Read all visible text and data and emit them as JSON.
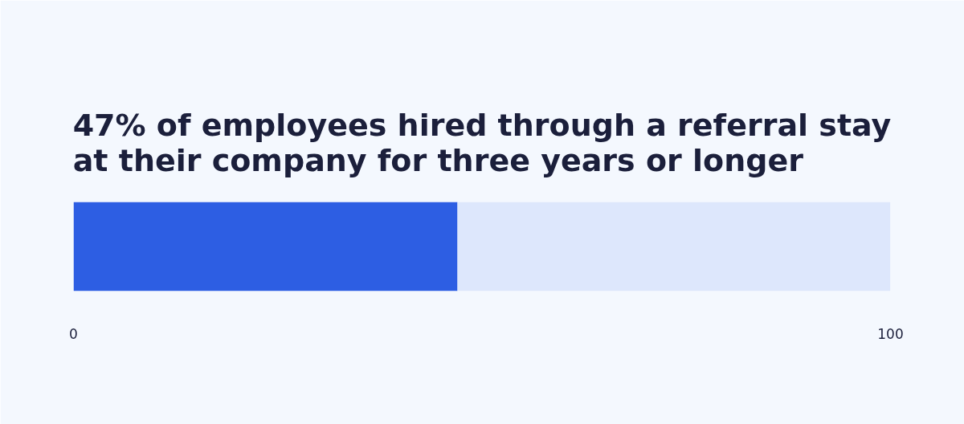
{
  "chart_data": {
    "type": "bar",
    "orientation": "horizontal",
    "stacked": true,
    "title": "47% of employees hired through a referral stay at their company for three years or longer",
    "categories": [
      null
    ],
    "series": [
      {
        "color": "#2d5ee3",
        "values": [
          47
        ]
      },
      {
        "color": "#dde7fc",
        "values": [
          53
        ]
      }
    ],
    "xlim": [
      0,
      100
    ],
    "xticks": [
      0,
      100
    ],
    "tick_labels": "x",
    "grid": false
  }
}
